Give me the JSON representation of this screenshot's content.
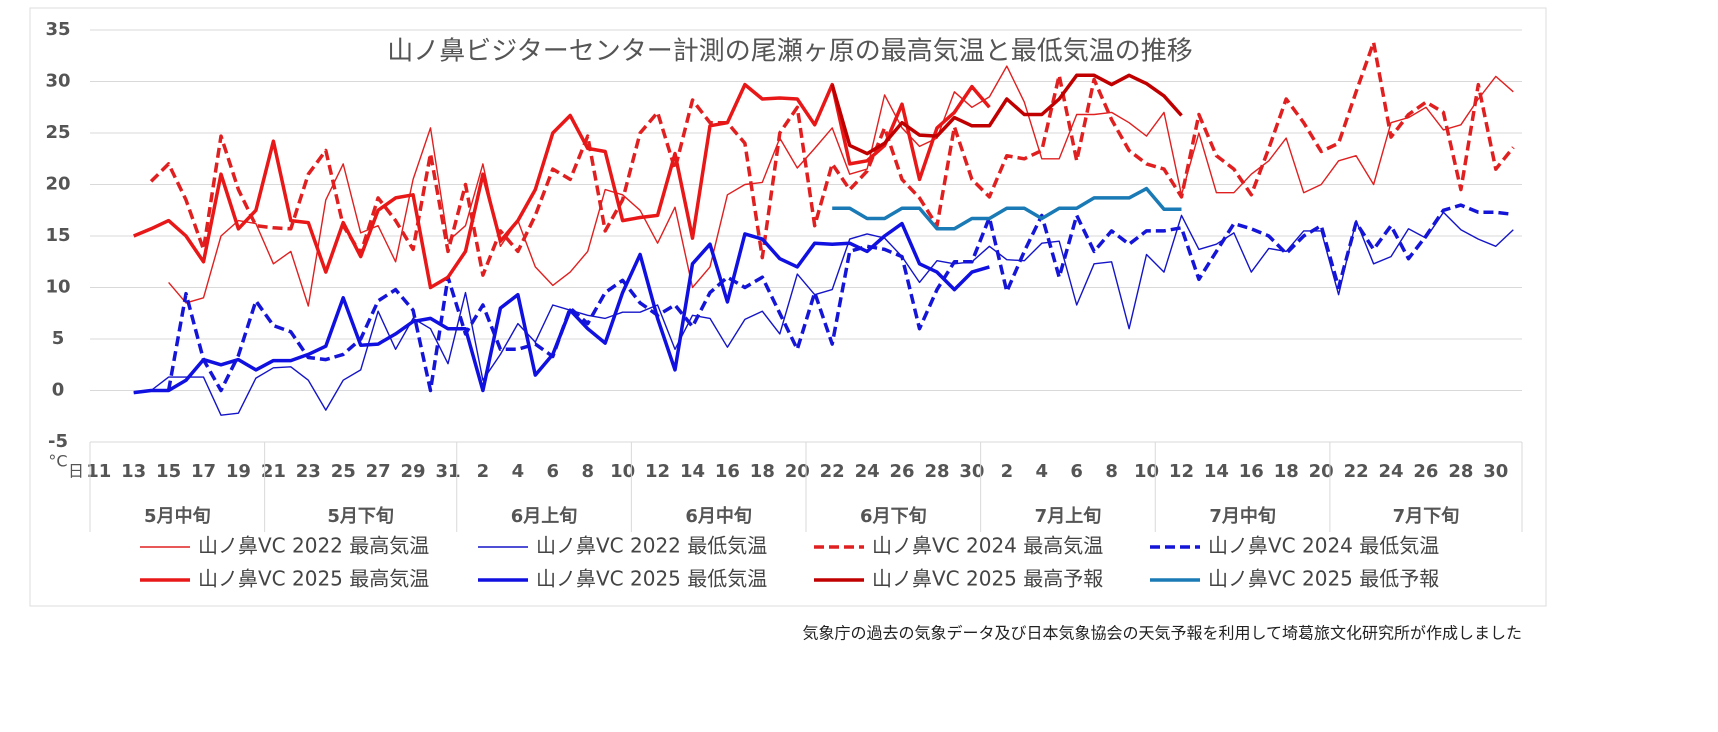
{
  "chart_data": {
    "type": "line",
    "title": "山ノ鼻ビジターセンター計測の尾瀬ヶ原の最高気温と最低気温の推移",
    "y_unit": "°C",
    "x_unit": "日",
    "note": "気象庁の過去の気象データ及び日本気象協会の天気予報を利用して埼葛旅文化研究所が作成しました",
    "categories": [
      "11",
      null,
      "13",
      null,
      "15",
      null,
      "17",
      null,
      "19",
      null,
      "21",
      null,
      "23",
      null,
      "25",
      null,
      "27",
      null,
      "29",
      null,
      "31",
      null,
      "2",
      null,
      "4",
      null,
      "6",
      null,
      "8",
      null,
      "10",
      null,
      "12",
      null,
      "14",
      null,
      "16",
      null,
      "18",
      null,
      "20",
      null,
      "22",
      null,
      "24",
      null,
      "26",
      null,
      "28",
      null,
      "30",
      null,
      "2",
      null,
      "4",
      null,
      "6",
      null,
      "8",
      null,
      "10",
      null,
      "12",
      null,
      "14",
      null,
      "16",
      null,
      "18",
      null,
      "20",
      null,
      "22",
      null,
      "24",
      null,
      "26",
      null,
      "28",
      null,
      "30",
      null
    ],
    "x_groups": [
      {
        "label": "5月中旬",
        "count": 10
      },
      {
        "label": "5月下旬",
        "count": 11
      },
      {
        "label": "6月上旬",
        "count": 10
      },
      {
        "label": "6月中旬",
        "count": 10
      },
      {
        "label": "6月下旬",
        "count": 10
      },
      {
        "label": "7月上旬",
        "count": 10
      },
      {
        "label": "7月中旬",
        "count": 10
      },
      {
        "label": "7月下旬",
        "count": 11
      }
    ],
    "ylim": [
      -5,
      35
    ],
    "yticks": [
      -5,
      0,
      5,
      10,
      15,
      20,
      25,
      30,
      35
    ],
    "grid": true,
    "series": [
      {
        "name": "山ノ鼻VC 2022 最高気温",
        "color": "#e02020",
        "style": "thin",
        "values": [
          null,
          null,
          null,
          null,
          10.5,
          8.5,
          9,
          15,
          16.5,
          16.2,
          12.3,
          13.5,
          8.2,
          18.5,
          22,
          15.3,
          16,
          12.5,
          20.5,
          25.5,
          14.5,
          16,
          22,
          14,
          16.5,
          12,
          10.2,
          11.5,
          13.5,
          19.5,
          19,
          17.5,
          14.3,
          17.8,
          10,
          12,
          19,
          20,
          20.2,
          24.5,
          21.6,
          23.5,
          25.5,
          21,
          21.5,
          28.7,
          25.5,
          23.7,
          24.5,
          29,
          27.5,
          28.5,
          31.5,
          28,
          22.5,
          22.5,
          26.8,
          26.8,
          27,
          26,
          24.7,
          27,
          19,
          25,
          19.2,
          19.2,
          21,
          22.3,
          24.5,
          19.2,
          20,
          22.3,
          22.8,
          20,
          26,
          26.5,
          27.5,
          25.3,
          25.8,
          28.3,
          30.5,
          29
        ]
      },
      {
        "name": "山ノ鼻VC 2022 最低気温",
        "color": "#1515c8",
        "style": "thin",
        "values": [
          null,
          null,
          -0.2,
          0,
          1.3,
          1.3,
          1.3,
          -2.4,
          -2.2,
          1.2,
          2.2,
          2.3,
          1,
          -1.9,
          1,
          2,
          7.7,
          4,
          7,
          6,
          2.6,
          9.5,
          1,
          3.5,
          6.5,
          4.7,
          8.3,
          7.8,
          7.3,
          7,
          7.6,
          7.6,
          8.3,
          4,
          7.3,
          7,
          4.2,
          6.9,
          7.7,
          5.5,
          11.3,
          9.3,
          9.8,
          14.7,
          15.2,
          14.8,
          13,
          10.5,
          12.6,
          12.3,
          12.5,
          14,
          12.7,
          12.6,
          14.3,
          14.5,
          8.3,
          12.3,
          12.5,
          6,
          13.2,
          11.5,
          17,
          13.7,
          14.2,
          15.3,
          11.5,
          13.8,
          13.5,
          15.5,
          15.5,
          9.3,
          16.5,
          12.3,
          13,
          15.7,
          14.8,
          17.3,
          15.6,
          14.7,
          14,
          15.6
        ]
      },
      {
        "name": "山ノ鼻VC 2024 最高気温",
        "color": "#e02020",
        "style": "dashed",
        "values": [
          null,
          null,
          null,
          20.3,
          22,
          18.5,
          13.7,
          24.7,
          19.5,
          16,
          15.8,
          15.7,
          21,
          23.3,
          16,
          13.3,
          18.7,
          16.5,
          13.7,
          23,
          13.5,
          20,
          11.2,
          15.5,
          13.5,
          17,
          21.5,
          20.5,
          24.7,
          15.5,
          18.5,
          25,
          27,
          21.5,
          28.2,
          26,
          26,
          24,
          12.9,
          25,
          27.5,
          16,
          22,
          19.5,
          21.3,
          25.5,
          20.5,
          18.7,
          16,
          25.6,
          20.5,
          18.8,
          22.8,
          22.5,
          23.3,
          30.6,
          22.3,
          30.2,
          26.3,
          23.3,
          22,
          21.5,
          18.8,
          26.8,
          22.8,
          21.5,
          19,
          23.5,
          28.3,
          26,
          23.2,
          24,
          29,
          33.8,
          24.6,
          26.8,
          28,
          27,
          19.5,
          29.7,
          21.5,
          23.6
        ]
      },
      {
        "name": "山ノ鼻VC 2024 最低気温",
        "color": "#1515d8",
        "style": "dashed",
        "values": [
          null,
          null,
          null,
          null,
          0,
          9.4,
          3,
          0,
          3.4,
          8.7,
          6.3,
          5.7,
          3.2,
          3,
          3.5,
          5,
          8.7,
          9.8,
          7.8,
          0,
          11,
          5.5,
          8.3,
          4,
          4,
          4.5,
          3.3,
          8,
          6.5,
          9.5,
          10.7,
          8.5,
          7.3,
          8.3,
          6.2,
          9.5,
          11,
          10,
          11,
          7.5,
          4,
          9.5,
          4.5,
          13.5,
          14,
          13.7,
          13,
          6,
          9.8,
          12.5,
          12.5,
          16.8,
          9.6,
          13.5,
          17,
          11,
          17,
          13.5,
          15.5,
          14.2,
          15.5,
          15.5,
          15.8,
          10.8,
          13.5,
          16.2,
          15.7,
          15,
          13.3,
          15,
          16,
          10,
          16.3,
          13.7,
          16,
          12.8,
          15,
          17.5,
          18,
          17.3,
          17.3,
          17.1
        ]
      },
      {
        "name": "山ノ鼻VC 2025 最高気温",
        "color": "#e81818",
        "style": "thick",
        "values": [
          null,
          null,
          15,
          15.7,
          16.5,
          15,
          12.5,
          21,
          15.7,
          17.5,
          24.2,
          16.5,
          16.3,
          11.5,
          16.3,
          13,
          17.5,
          18.7,
          19,
          10,
          11,
          13.5,
          21,
          14.5,
          16.5,
          19.5,
          25,
          26.7,
          23.5,
          23.2,
          16.5,
          16.8,
          17,
          23,
          14.8,
          25.7,
          26,
          29.7,
          28.3,
          28.4,
          28.3,
          25.8,
          29.7,
          22,
          22.3,
          23.8,
          27.8,
          20.5,
          25.5,
          27,
          29.5,
          27.5,
          null,
          null,
          null,
          null,
          null,
          null,
          null,
          null,
          null,
          null,
          null,
          null,
          null,
          null,
          null,
          null,
          null,
          null,
          null,
          null,
          null,
          null,
          null,
          null,
          null,
          null,
          null,
          null,
          null,
          null
        ]
      },
      {
        "name": "山ノ鼻VC 2025 最低気温",
        "color": "#1010e0",
        "style": "thick",
        "values": [
          null,
          null,
          -0.2,
          0,
          0,
          1,
          3,
          2.5,
          3,
          2,
          2.9,
          2.9,
          3.5,
          4.3,
          9,
          4.4,
          4.5,
          5.5,
          6.7,
          7,
          6,
          6,
          0,
          8,
          9.3,
          1.5,
          3.5,
          7.8,
          6,
          4.6,
          9.5,
          13.2,
          7,
          2,
          12.3,
          14.2,
          8.6,
          15.2,
          14.7,
          12.8,
          12,
          14.3,
          14.2,
          14.3,
          13.5,
          15,
          16.2,
          12.3,
          11.5,
          9.8,
          11.5,
          12,
          null,
          null,
          null,
          null,
          null,
          null,
          null,
          null,
          null,
          null,
          null,
          null,
          null,
          null,
          null,
          null,
          null,
          null,
          null,
          null,
          null,
          null,
          null,
          null,
          null,
          null,
          null,
          null,
          null,
          null
        ]
      },
      {
        "name": "山ノ鼻VC 2025 最高予報",
        "color": "#c00000",
        "style": "thick",
        "values": [
          null,
          null,
          null,
          null,
          null,
          null,
          null,
          null,
          null,
          null,
          null,
          null,
          null,
          null,
          null,
          null,
          null,
          null,
          null,
          null,
          null,
          null,
          null,
          null,
          null,
          null,
          null,
          null,
          null,
          null,
          null,
          null,
          null,
          null,
          null,
          null,
          null,
          null,
          null,
          null,
          null,
          null,
          29.7,
          23.8,
          23,
          24,
          26,
          24.8,
          24.7,
          26.5,
          25.7,
          25.7,
          28.3,
          26.8,
          26.8,
          28.3,
          30.6,
          30.6,
          29.7,
          30.6,
          29.8,
          28.6,
          26.7,
          null,
          null,
          null,
          null,
          null,
          null,
          null,
          null,
          null,
          null,
          null,
          null,
          null,
          null,
          null,
          null,
          null,
          null,
          null
        ]
      },
      {
        "name": "山ノ鼻VC 2025 最低予報",
        "color": "#1a7ab5",
        "style": "thick",
        "values": [
          null,
          null,
          null,
          null,
          null,
          null,
          null,
          null,
          null,
          null,
          null,
          null,
          null,
          null,
          null,
          null,
          null,
          null,
          null,
          null,
          null,
          null,
          null,
          null,
          null,
          null,
          null,
          null,
          null,
          null,
          null,
          null,
          null,
          null,
          null,
          null,
          null,
          null,
          null,
          null,
          null,
          null,
          17.7,
          17.7,
          16.7,
          16.7,
          17.7,
          17.7,
          15.7,
          15.7,
          16.7,
          16.7,
          17.7,
          17.7,
          16.7,
          17.7,
          17.7,
          18.7,
          18.7,
          18.7,
          19.6,
          17.6,
          17.6,
          null,
          null,
          null,
          null,
          null,
          null,
          null,
          null,
          null,
          null,
          null,
          null,
          null,
          null,
          null,
          null,
          null,
          null,
          null
        ]
      }
    ]
  }
}
